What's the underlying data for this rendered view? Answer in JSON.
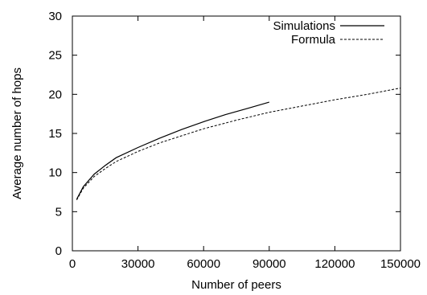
{
  "chart_data": {
    "type": "line",
    "title": "",
    "xlabel": "Number of peers",
    "ylabel": "Average number of hops",
    "xlim": [
      0,
      150000
    ],
    "ylim": [
      0,
      30
    ],
    "xticks": [
      0,
      30000,
      60000,
      90000,
      120000,
      150000
    ],
    "yticks": [
      0,
      5,
      10,
      15,
      20,
      25,
      30
    ],
    "xtick_labels": [
      "0",
      "30000",
      "60000",
      "90000",
      "120000",
      "150000"
    ],
    "ytick_labels": [
      "0",
      "5",
      "10",
      "15",
      "20",
      "25",
      "30"
    ],
    "grid": false,
    "legend": "top-right",
    "series": [
      {
        "name": "Simulations",
        "style": "solid",
        "color": "#000000",
        "x": [
          2000,
          5000,
          10000,
          15000,
          20000,
          30000,
          40000,
          50000,
          60000,
          70000,
          80000,
          90000
        ],
        "y": [
          6.6,
          8.2,
          9.8,
          10.9,
          11.9,
          13.2,
          14.4,
          15.5,
          16.5,
          17.4,
          18.2,
          19.0
        ]
      },
      {
        "name": "Formula",
        "style": "dashed",
        "color": "#000000",
        "x": [
          2000,
          5000,
          10000,
          15000,
          20000,
          30000,
          40000,
          50000,
          60000,
          75000,
          90000,
          105000,
          120000,
          135000,
          150000
        ],
        "y": [
          6.5,
          8.0,
          9.5,
          10.5,
          11.4,
          12.7,
          13.8,
          14.7,
          15.6,
          16.7,
          17.7,
          18.5,
          19.3,
          20.0,
          20.8
        ]
      }
    ]
  }
}
